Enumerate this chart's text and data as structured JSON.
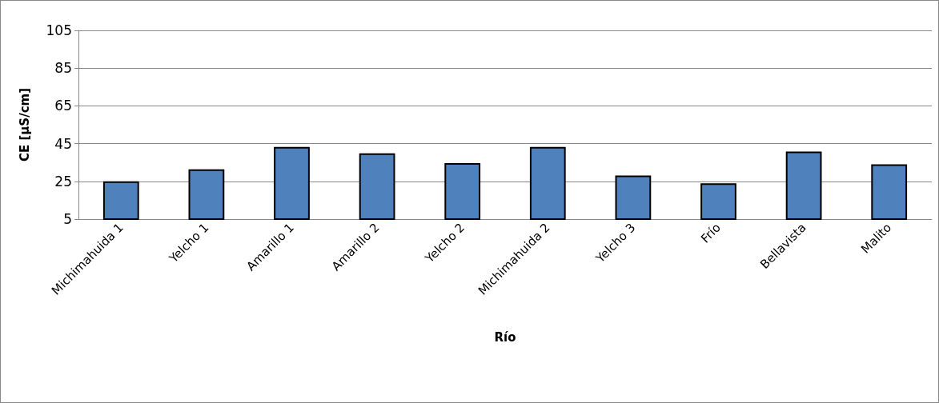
{
  "chart_data": {
    "type": "bar",
    "xlabel": "Río",
    "ylabel": "CE [µS/cm]",
    "categories": [
      "Michimahuida 1",
      "Yelcho 1",
      "Amarillo 1",
      "Amarillo 2",
      "Yelcho 2",
      "Michimahuida 2",
      "Yelcho 3",
      "Frío",
      "Bellavista",
      "Malito"
    ],
    "values": [
      25,
      31.4,
      43.2,
      39.9,
      34.7,
      43.2,
      28.1,
      24,
      40.8,
      34
    ],
    "color": "#4f81bd",
    "ylim": [
      5,
      105
    ],
    "yticks": [
      5,
      25,
      45,
      65,
      85,
      105
    ],
    "grid": "y"
  }
}
